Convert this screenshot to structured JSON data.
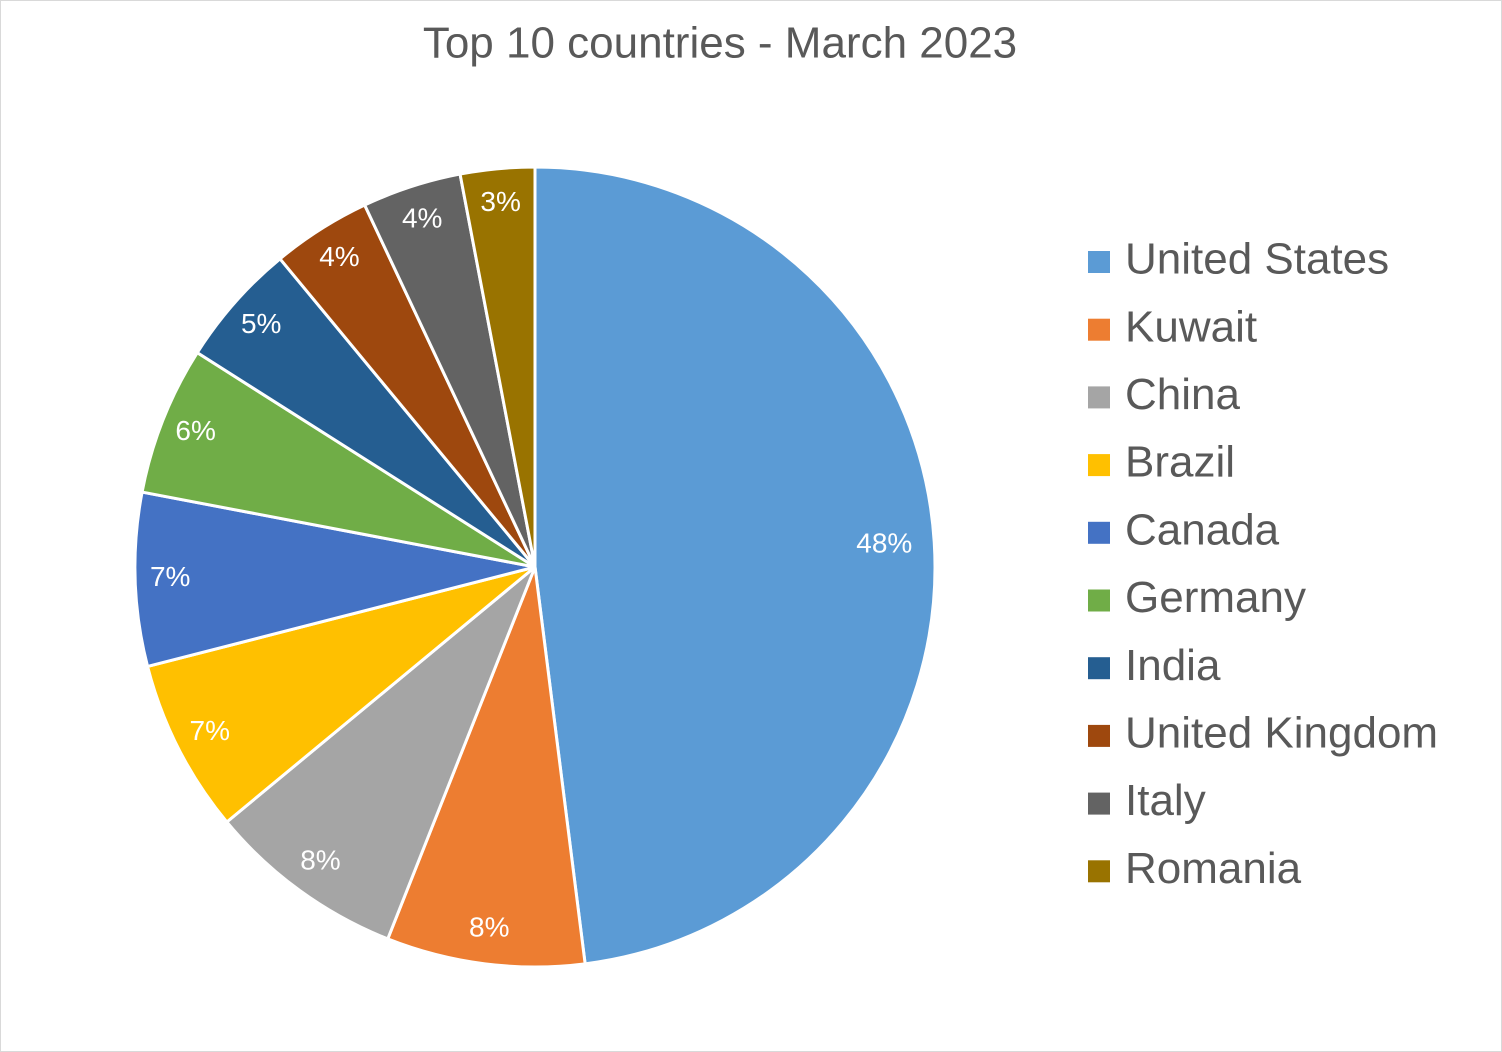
{
  "chart_data": {
    "type": "pie",
    "title": "Top 10 countries - March 2023",
    "categories": [
      "United States",
      "Kuwait",
      "China",
      "Brazil",
      "Canada",
      "Germany",
      "India",
      "United Kingdom",
      "Italy",
      "Romania"
    ],
    "values": [
      48,
      8,
      8,
      7,
      7,
      6,
      5,
      4,
      4,
      3
    ],
    "value_labels": [
      "48%",
      "8%",
      "8%",
      "7%",
      "7%",
      "6%",
      "5%",
      "4%",
      "4%",
      "3%"
    ],
    "colors": [
      "#5b9bd5",
      "#ed7d31",
      "#a5a5a5",
      "#ffc000",
      "#4472c4",
      "#70ad47",
      "#255e91",
      "#9e480e",
      "#636363",
      "#997300"
    ],
    "legend": "right"
  }
}
